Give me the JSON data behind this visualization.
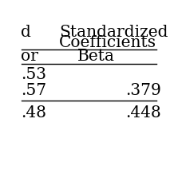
{
  "col_headers_row1_left": "d",
  "col_headers_row1_right": "Standardized",
  "col_headers_row2_right": "Coefficients",
  "col_headers_row3_left": "or",
  "col_headers_row3_right": "Beta",
  "rows": [
    [
      ".53",
      ""
    ],
    [
      ".57",
      ".379"
    ],
    [
      ".48",
      ".448"
    ]
  ],
  "background_color": "#ffffff",
  "text_color": "#000000",
  "font_size": 14.5,
  "fig_width": 2.18,
  "fig_height": 2.18,
  "dpi": 100
}
